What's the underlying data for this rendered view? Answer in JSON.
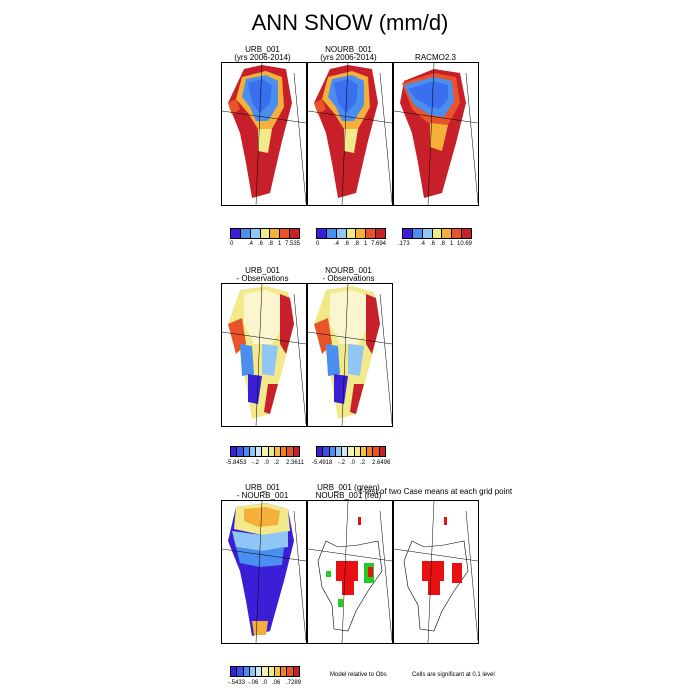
{
  "title": "ANN SNOW (mm/d)",
  "row1": {
    "panels": [
      {
        "l1": "URB_001",
        "l2": "(yrs 2006-2014)"
      },
      {
        "l1": "NOURB_001",
        "l2": "(yrs 2006-2014)"
      },
      {
        "l1": "RACMO2.3",
        "l2": ""
      }
    ],
    "colorbars": [
      {
        "labels": [
          "0",
          ".4",
          ".6",
          ".8",
          "1",
          "7.535"
        ]
      },
      {
        "labels": [
          "0",
          ".4",
          ".6",
          ".8",
          "1",
          "7.694"
        ]
      },
      {
        "labels": [
          ".173",
          ".4",
          ".6",
          ".8",
          "1",
          "10.69"
        ]
      }
    ]
  },
  "row2": {
    "panels": [
      {
        "l1": "URB_001",
        "l2": "- Observations"
      },
      {
        "l1": "NOURB_001",
        "l2": "- Observations"
      }
    ],
    "colorbars": [
      {
        "labels": [
          "-5.8453",
          "-.2",
          ".0",
          ".2",
          "2.3611"
        ]
      },
      {
        "labels": [
          "-5.4918",
          "-.2",
          ".0",
          ".2",
          "2.6496"
        ]
      }
    ]
  },
  "row3": {
    "panels": [
      {
        "l1": "URB_001",
        "l2": "- NOURB_001"
      },
      {
        "l1": "URB_001 (green)",
        "l2": "NOURB_001 (red)"
      }
    ],
    "ttest_title": "t-test of two Case means at each grid point",
    "colorbar": {
      "labels": [
        "-.5433",
        "-.06",
        ".0",
        ".06",
        ".7289"
      ]
    },
    "note_left": "Model relative to Obs",
    "note_right": "Cells are significant at 0.1 level"
  },
  "colors": {
    "snow_scale": [
      "#3a1fd6",
      "#4a8ff0",
      "#8fc6f5",
      "#f2e98a",
      "#f5b03a",
      "#e8542a",
      "#c8202a"
    ],
    "diff_scale": [
      "#3a1fd6",
      "#3b50e8",
      "#4a8ff0",
      "#8fc6f5",
      "#cfe6f7",
      "#f5f2b0",
      "#f2e98a",
      "#f5c04a",
      "#f0802e",
      "#e8542a",
      "#c8202a"
    ],
    "sig_red": "#e81010",
    "sig_green": "#22cc22"
  }
}
